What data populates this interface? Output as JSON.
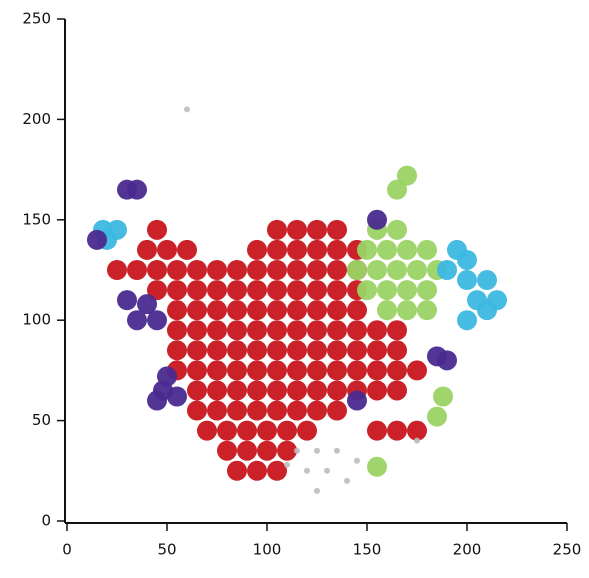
{
  "chart_data": {
    "type": "scatter",
    "xlim": [
      0,
      250
    ],
    "ylim": [
      0,
      250
    ],
    "xticks": [
      0,
      50,
      100,
      150,
      200,
      250
    ],
    "yticks": [
      0,
      50,
      100,
      150,
      200,
      250
    ],
    "series": [
      {
        "color": "#c8161d",
        "x": [
          45,
          105,
          115,
          125,
          135,
          40,
          50,
          60,
          95,
          105,
          115,
          125,
          135,
          145,
          25,
          35,
          45,
          55,
          65,
          75,
          85,
          95,
          105,
          115,
          125,
          135,
          145,
          45,
          55,
          65,
          75,
          85,
          95,
          105,
          115,
          125,
          135,
          145,
          55,
          65,
          75,
          85,
          95,
          105,
          115,
          125,
          135,
          145,
          55,
          65,
          75,
          85,
          95,
          105,
          115,
          125,
          135,
          145,
          155,
          165,
          55,
          65,
          75,
          85,
          95,
          105,
          115,
          125,
          135,
          145,
          155,
          165,
          55,
          65,
          75,
          85,
          95,
          105,
          115,
          125,
          135,
          145,
          155,
          165,
          175,
          65,
          75,
          85,
          95,
          105,
          115,
          125,
          135,
          145,
          155,
          165,
          65,
          75,
          85,
          95,
          105,
          115,
          125,
          135,
          70,
          80,
          90,
          100,
          110,
          120,
          155,
          165,
          175,
          80,
          90,
          100,
          110,
          85,
          95,
          105
        ],
        "values": [
          145,
          145,
          145,
          145,
          145,
          135,
          135,
          135,
          135,
          135,
          135,
          135,
          135,
          135,
          125,
          125,
          125,
          125,
          125,
          125,
          125,
          125,
          125,
          125,
          125,
          125,
          125,
          115,
          115,
          115,
          115,
          115,
          115,
          115,
          115,
          115,
          115,
          115,
          105,
          105,
          105,
          105,
          105,
          105,
          105,
          105,
          105,
          105,
          95,
          95,
          95,
          95,
          95,
          95,
          95,
          95,
          95,
          95,
          95,
          95,
          85,
          85,
          85,
          85,
          85,
          85,
          85,
          85,
          85,
          85,
          85,
          85,
          75,
          75,
          75,
          75,
          75,
          75,
          75,
          75,
          75,
          75,
          75,
          75,
          75,
          65,
          65,
          65,
          65,
          65,
          65,
          65,
          65,
          65,
          65,
          65,
          55,
          55,
          55,
          55,
          55,
          55,
          55,
          55,
          45,
          45,
          45,
          45,
          45,
          45,
          45,
          45,
          45,
          35,
          35,
          35,
          35,
          25,
          25,
          25
        ]
      },
      {
        "color": "#bdbdbd",
        "x": [
          115,
          125,
          135,
          145,
          120,
          130,
          140,
          110,
          125,
          28,
          60,
          175
        ],
        "values": [
          35,
          35,
          35,
          30,
          25,
          25,
          20,
          28,
          15,
          162,
          205,
          40
        ]
      },
      {
        "color": "#9ad364",
        "x": [
          155,
          165,
          150,
          160,
          170,
          180,
          145,
          155,
          165,
          175,
          185,
          150,
          160,
          170,
          180,
          160,
          170,
          180,
          165,
          170,
          155,
          188,
          185
        ],
        "values": [
          145,
          145,
          135,
          135,
          135,
          135,
          125,
          125,
          125,
          125,
          125,
          115,
          115,
          115,
          115,
          105,
          105,
          105,
          165,
          172,
          27,
          62,
          52
        ]
      },
      {
        "color": "#3cb8e2",
        "x": [
          18,
          25,
          20,
          195,
          190,
          200,
          200,
          210,
          205,
          210,
          200,
          215
        ],
        "values": [
          145,
          145,
          140,
          135,
          125,
          130,
          120,
          120,
          110,
          105,
          100,
          110
        ]
      },
      {
        "color": "#4a2a8f",
        "x": [
          48,
          55,
          50,
          45,
          30,
          40,
          35,
          45,
          145,
          185,
          190,
          30,
          35,
          155,
          15
        ],
        "values": [
          65,
          62,
          72,
          60,
          110,
          108,
          100,
          100,
          60,
          82,
          80,
          165,
          165,
          150,
          140
        ]
      }
    ]
  }
}
